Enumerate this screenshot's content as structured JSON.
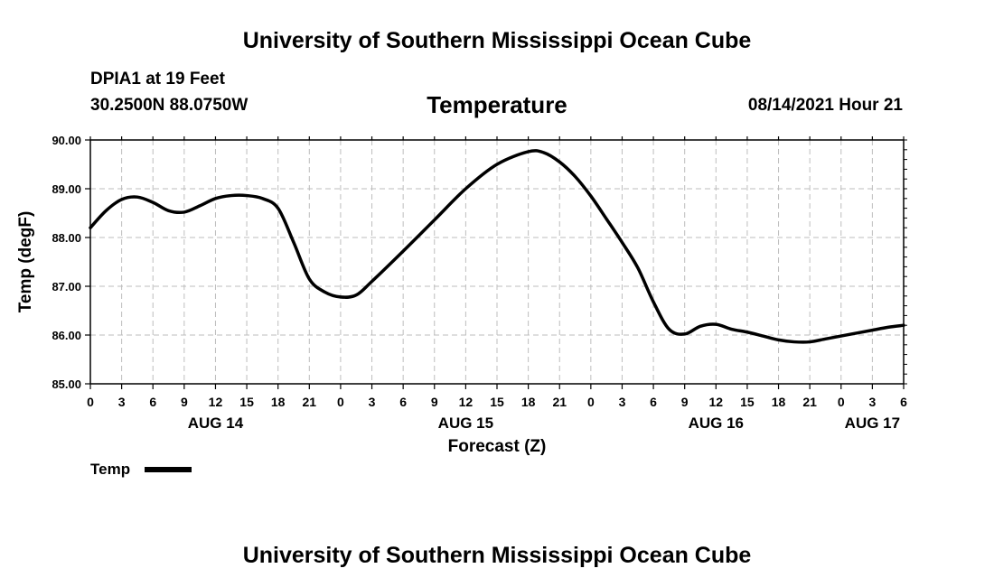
{
  "page": {
    "top_title": "University of Southern Mississippi Ocean Cube",
    "bottom_title": "University of Southern Mississippi Ocean Cube",
    "station": "DPIA1 at 19 Feet",
    "coords": "30.2500N  88.0750W",
    "timestamp": "08/14/2021 Hour 21"
  },
  "chart_data": {
    "type": "line",
    "title": "Temperature",
    "xlabel": "Forecast (Z)",
    "ylabel": "Temp (degF)",
    "ylim": [
      85.0,
      90.0
    ],
    "yticks": [
      "85.00",
      "86.00",
      "87.00",
      "88.00",
      "89.00",
      "90.00"
    ],
    "xlim": [
      0,
      78
    ],
    "x_tick_hours": [
      0,
      3,
      6,
      9,
      12,
      15,
      18,
      21,
      24,
      27,
      30,
      33,
      36,
      39,
      42,
      45,
      48,
      51,
      54,
      57,
      60,
      63,
      66,
      69,
      72,
      75,
      78
    ],
    "x_tick_labels": [
      "0",
      "3",
      "6",
      "9",
      "12",
      "15",
      "18",
      "21",
      "0",
      "3",
      "6",
      "9",
      "12",
      "15",
      "18",
      "21",
      "0",
      "3",
      "6",
      "9",
      "12",
      "15",
      "18",
      "21",
      "0",
      "3",
      "6"
    ],
    "date_labels": [
      {
        "label": "AUG 14",
        "hour": 12
      },
      {
        "label": "AUG 15",
        "hour": 36
      },
      {
        "label": "AUG 16",
        "hour": 60
      },
      {
        "label": "AUG 17",
        "hour": 75
      }
    ],
    "grid": true,
    "legend": "bottom-left",
    "series": [
      {
        "name": "Temp",
        "color": "#000000",
        "x": [
          0,
          1.5,
          3,
          4.5,
          6,
          7.5,
          9,
          10.5,
          12,
          13.5,
          15,
          16.5,
          18,
          19.5,
          21,
          22.5,
          24,
          25.5,
          27,
          30,
          33,
          36,
          39,
          42,
          43.5,
          45,
          46.5,
          48,
          49.5,
          51,
          52.5,
          54,
          55.5,
          57,
          58.5,
          60,
          61.5,
          63,
          64.5,
          66,
          67.5,
          69,
          70.5,
          72,
          73.5,
          75,
          76.5,
          78
        ],
        "values": [
          88.2,
          88.55,
          88.78,
          88.83,
          88.72,
          88.55,
          88.52,
          88.65,
          88.8,
          88.86,
          88.86,
          88.8,
          88.6,
          87.9,
          87.15,
          86.88,
          86.78,
          86.82,
          87.1,
          87.72,
          88.36,
          89.0,
          89.5,
          89.76,
          89.74,
          89.55,
          89.25,
          88.85,
          88.38,
          87.9,
          87.38,
          86.68,
          86.12,
          86.02,
          86.18,
          86.22,
          86.12,
          86.06,
          85.98,
          85.9,
          85.86,
          85.86,
          85.92,
          85.98,
          86.04,
          86.1,
          86.16,
          86.2
        ]
      }
    ]
  }
}
